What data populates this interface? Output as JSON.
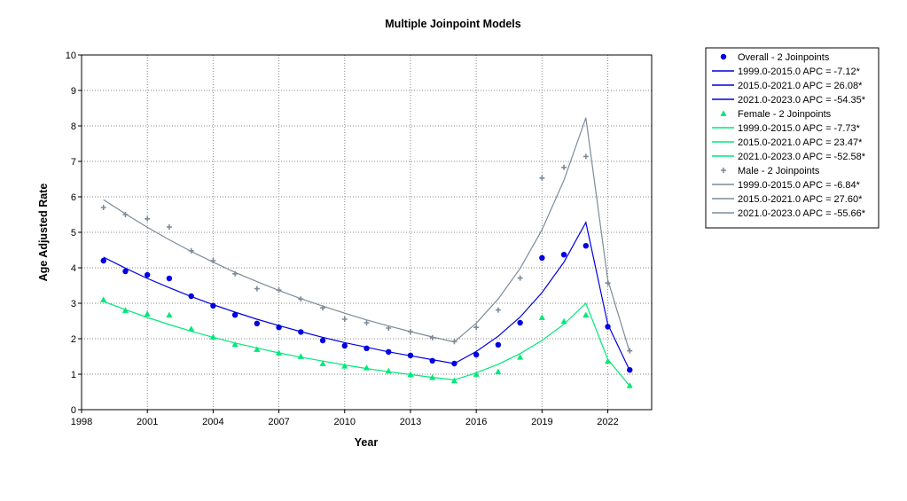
{
  "chart_data": {
    "type": "line",
    "title": "Multiple Joinpoint Models",
    "xlabel": "Year",
    "ylabel": "Age Adjusted Rate",
    "xlim": [
      1998,
      2024
    ],
    "ylim": [
      0,
      10
    ],
    "x_ticks": [
      1998,
      2001,
      2004,
      2007,
      2010,
      2013,
      2016,
      2019,
      2022
    ],
    "y_ticks": [
      0,
      1,
      2,
      3,
      4,
      5,
      6,
      7,
      8,
      9,
      10
    ],
    "grid": true,
    "legend_position": "right",
    "colors": {
      "overall": "#0000e0",
      "female": "#00e87a",
      "male": "#7d8b99",
      "grid": "#8a8a8a"
    },
    "series": [
      {
        "name": "Overall - 2 Joinpoints",
        "marker": "circle",
        "color": "#0000e0",
        "x": [
          1999,
          2000,
          2001,
          2002,
          2003,
          2004,
          2005,
          2006,
          2007,
          2008,
          2009,
          2010,
          2011,
          2012,
          2013,
          2014,
          2015,
          2016,
          2017,
          2018,
          2019,
          2020,
          2021,
          2022,
          2023
        ],
        "observed": [
          4.2,
          3.9,
          3.8,
          3.7,
          3.2,
          2.93,
          2.67,
          2.43,
          2.32,
          2.19,
          1.95,
          1.8,
          1.73,
          1.63,
          1.53,
          1.38,
          1.3,
          1.55,
          1.83,
          2.45,
          4.28,
          4.37,
          4.62,
          2.34,
          1.12
        ],
        "fitted": [
          4.3,
          3.99,
          3.7,
          3.44,
          3.19,
          2.96,
          2.75,
          2.55,
          2.37,
          2.2,
          2.04,
          1.89,
          1.76,
          1.63,
          1.52,
          1.41,
          1.3,
          1.64,
          2.07,
          2.61,
          3.3,
          4.16,
          5.28,
          2.41,
          1.1
        ],
        "legend_lines": [
          "1999.0-2015.0 APC  =   -7.12*",
          "2015.0-2021.0 APC  =  26.08*",
          "2021.0-2023.0 APC  =  -54.35*"
        ]
      },
      {
        "name": "Female - 2 Joinpoints",
        "marker": "triangle",
        "color": "#00e87a",
        "x": [
          1999,
          2000,
          2001,
          2002,
          2003,
          2004,
          2005,
          2006,
          2007,
          2008,
          2009,
          2010,
          2011,
          2012,
          2013,
          2014,
          2015,
          2016,
          2017,
          2018,
          2019,
          2020,
          2021,
          2022,
          2023
        ],
        "observed": [
          3.1,
          2.8,
          2.7,
          2.67,
          2.28,
          2.05,
          1.84,
          1.7,
          1.6,
          1.5,
          1.3,
          1.23,
          1.18,
          1.09,
          0.99,
          0.91,
          0.82,
          1.0,
          1.07,
          1.48,
          2.6,
          2.49,
          2.67,
          1.37,
          0.68
        ],
        "fitted": [
          3.05,
          2.82,
          2.6,
          2.4,
          2.21,
          2.04,
          1.88,
          1.74,
          1.6,
          1.48,
          1.37,
          1.26,
          1.16,
          1.07,
          0.99,
          0.91,
          0.84,
          1.04,
          1.28,
          1.58,
          1.95,
          2.41,
          3.0,
          1.42,
          0.67
        ],
        "legend_lines": [
          "1999.0-2015.0 APC  =   -7.73*",
          "2015.0-2021.0 APC  =  23.47*",
          "2021.0-2023.0 APC  =  -52.58*"
        ]
      },
      {
        "name": "Male - 2 Joinpoints",
        "marker": "plus",
        "color": "#7d8b99",
        "x": [
          1999,
          2000,
          2001,
          2002,
          2003,
          2004,
          2005,
          2006,
          2007,
          2008,
          2009,
          2010,
          2011,
          2012,
          2013,
          2014,
          2015,
          2016,
          2017,
          2018,
          2019,
          2020,
          2021,
          2022,
          2023
        ],
        "observed": [
          5.7,
          5.5,
          5.38,
          5.15,
          4.48,
          4.2,
          3.83,
          3.41,
          3.37,
          3.12,
          2.87,
          2.55,
          2.45,
          2.3,
          2.2,
          2.03,
          1.92,
          2.32,
          2.81,
          3.71,
          6.53,
          6.83,
          7.14,
          3.57,
          1.66
        ],
        "fitted": [
          5.92,
          5.52,
          5.14,
          4.79,
          4.46,
          4.16,
          3.87,
          3.61,
          3.36,
          3.13,
          2.92,
          2.72,
          2.53,
          2.36,
          2.2,
          2.05,
          1.91,
          2.44,
          3.12,
          3.98,
          5.07,
          6.47,
          8.23,
          3.66,
          1.62
        ],
        "legend_lines": [
          "1999.0-2015.0 APC  =   -6.84*",
          "2015.0-2021.0 APC  =  27.60*",
          "2021.0-2023.0 APC  =  -55.66*"
        ]
      }
    ]
  }
}
